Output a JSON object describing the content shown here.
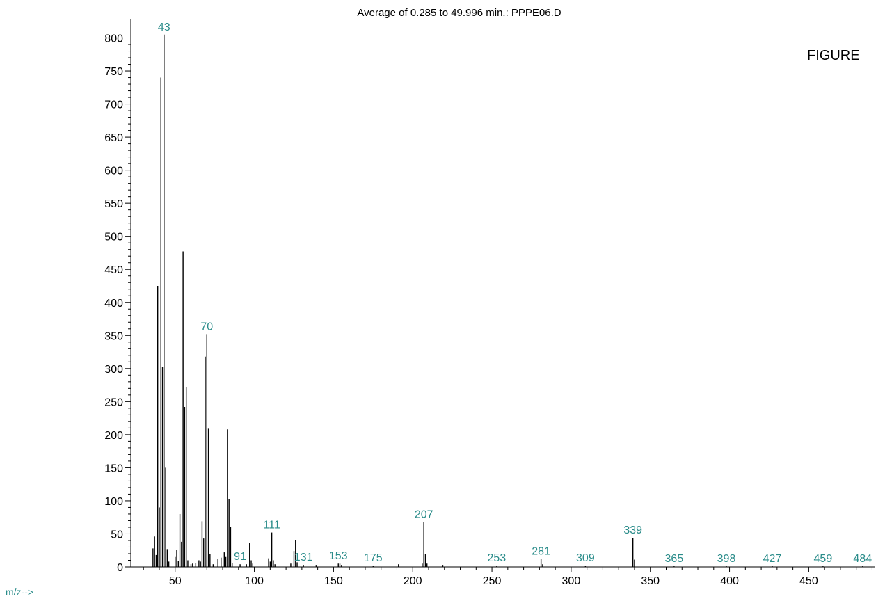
{
  "chart_data": {
    "type": "bar",
    "title": "Average of 0.285 to 49.996 min.: PPPE06.D",
    "side_text": "FIGURE",
    "xlabel": "m/z-->",
    "ylabel": "",
    "xlim": [
      22,
      492
    ],
    "ylim": [
      0,
      820
    ],
    "x_ticks": [
      50,
      100,
      150,
      200,
      250,
      300,
      350,
      400,
      450
    ],
    "y_ticks": [
      0,
      50,
      100,
      150,
      200,
      250,
      300,
      350,
      400,
      450,
      500,
      550,
      600,
      650,
      700,
      750,
      800
    ],
    "colors": {
      "bars": "#000000",
      "peak_labels": "#2a8c8a",
      "axes": "#000000"
    },
    "peaks": [
      {
        "mz": 36,
        "abundance": 28
      },
      {
        "mz": 37,
        "abundance": 46
      },
      {
        "mz": 38,
        "abundance": 18
      },
      {
        "mz": 39,
        "abundance": 425
      },
      {
        "mz": 40,
        "abundance": 90
      },
      {
        "mz": 41,
        "abundance": 740
      },
      {
        "mz": 42,
        "abundance": 303
      },
      {
        "mz": 43,
        "abundance": 805
      },
      {
        "mz": 44,
        "abundance": 150
      },
      {
        "mz": 45,
        "abundance": 27
      },
      {
        "mz": 46,
        "abundance": 8
      },
      {
        "mz": 50,
        "abundance": 15
      },
      {
        "mz": 51,
        "abundance": 26
      },
      {
        "mz": 52,
        "abundance": 9
      },
      {
        "mz": 53,
        "abundance": 80
      },
      {
        "mz": 54,
        "abundance": 38
      },
      {
        "mz": 55,
        "abundance": 477
      },
      {
        "mz": 56,
        "abundance": 242
      },
      {
        "mz": 57,
        "abundance": 272
      },
      {
        "mz": 58,
        "abundance": 10
      },
      {
        "mz": 60,
        "abundance": 4
      },
      {
        "mz": 61,
        "abundance": 5
      },
      {
        "mz": 63,
        "abundance": 6
      },
      {
        "mz": 65,
        "abundance": 10
      },
      {
        "mz": 66,
        "abundance": 8
      },
      {
        "mz": 67,
        "abundance": 69
      },
      {
        "mz": 68,
        "abundance": 43
      },
      {
        "mz": 69,
        "abundance": 318
      },
      {
        "mz": 70,
        "abundance": 352
      },
      {
        "mz": 71,
        "abundance": 209
      },
      {
        "mz": 72,
        "abundance": 20
      },
      {
        "mz": 74,
        "abundance": 4
      },
      {
        "mz": 77,
        "abundance": 12
      },
      {
        "mz": 79,
        "abundance": 14
      },
      {
        "mz": 81,
        "abundance": 22
      },
      {
        "mz": 82,
        "abundance": 15
      },
      {
        "mz": 83,
        "abundance": 208
      },
      {
        "mz": 84,
        "abundance": 103
      },
      {
        "mz": 85,
        "abundance": 60
      },
      {
        "mz": 86,
        "abundance": 6
      },
      {
        "mz": 91,
        "abundance": 4
      },
      {
        "mz": 95,
        "abundance": 4
      },
      {
        "mz": 97,
        "abundance": 36
      },
      {
        "mz": 98,
        "abundance": 10
      },
      {
        "mz": 99,
        "abundance": 5
      },
      {
        "mz": 109,
        "abundance": 13
      },
      {
        "mz": 110,
        "abundance": 8
      },
      {
        "mz": 111,
        "abundance": 52
      },
      {
        "mz": 112,
        "abundance": 10
      },
      {
        "mz": 113,
        "abundance": 4
      },
      {
        "mz": 123,
        "abundance": 5
      },
      {
        "mz": 125,
        "abundance": 24
      },
      {
        "mz": 126,
        "abundance": 40
      },
      {
        "mz": 127,
        "abundance": 7
      },
      {
        "mz": 131,
        "abundance": 3
      },
      {
        "mz": 139,
        "abundance": 3
      },
      {
        "mz": 153,
        "abundance": 5
      },
      {
        "mz": 154,
        "abundance": 5
      },
      {
        "mz": 155,
        "abundance": 3
      },
      {
        "mz": 175,
        "abundance": 2
      },
      {
        "mz": 191,
        "abundance": 4
      },
      {
        "mz": 206,
        "abundance": 5
      },
      {
        "mz": 207,
        "abundance": 68
      },
      {
        "mz": 208,
        "abundance": 19
      },
      {
        "mz": 209,
        "abundance": 5
      },
      {
        "mz": 219,
        "abundance": 3
      },
      {
        "mz": 253,
        "abundance": 2
      },
      {
        "mz": 281,
        "abundance": 12
      },
      {
        "mz": 282,
        "abundance": 4
      },
      {
        "mz": 309,
        "abundance": 2
      },
      {
        "mz": 339,
        "abundance": 44
      },
      {
        "mz": 340,
        "abundance": 11
      },
      {
        "mz": 365,
        "abundance": 1
      },
      {
        "mz": 398,
        "abundance": 1
      },
      {
        "mz": 427,
        "abundance": 1
      },
      {
        "mz": 459,
        "abundance": 1
      },
      {
        "mz": 484,
        "abundance": 1
      }
    ],
    "peak_labels": [
      {
        "text": "43",
        "mz": 43,
        "abundance": 805
      },
      {
        "text": "70",
        "mz": 70,
        "abundance": 352
      },
      {
        "text": "91",
        "mz": 91,
        "abundance": 4
      },
      {
        "text": "111",
        "mz": 111,
        "abundance": 52
      },
      {
        "text": "131",
        "mz": 131,
        "abundance": 3
      },
      {
        "text": "153",
        "mz": 153,
        "abundance": 5
      },
      {
        "text": "175",
        "mz": 175,
        "abundance": 2
      },
      {
        "text": "207",
        "mz": 207,
        "abundance": 68
      },
      {
        "text": "253",
        "mz": 253,
        "abundance": 2
      },
      {
        "text": "281",
        "mz": 281,
        "abundance": 12
      },
      {
        "text": "309",
        "mz": 309,
        "abundance": 2
      },
      {
        "text": "339",
        "mz": 339,
        "abundance": 44
      },
      {
        "text": "365",
        "mz": 365,
        "abundance": 1
      },
      {
        "text": "398",
        "mz": 398,
        "abundance": 1
      },
      {
        "text": "427",
        "mz": 427,
        "abundance": 1
      },
      {
        "text": "459",
        "mz": 459,
        "abundance": 1
      },
      {
        "text": "484",
        "mz": 484,
        "abundance": 1
      }
    ]
  }
}
